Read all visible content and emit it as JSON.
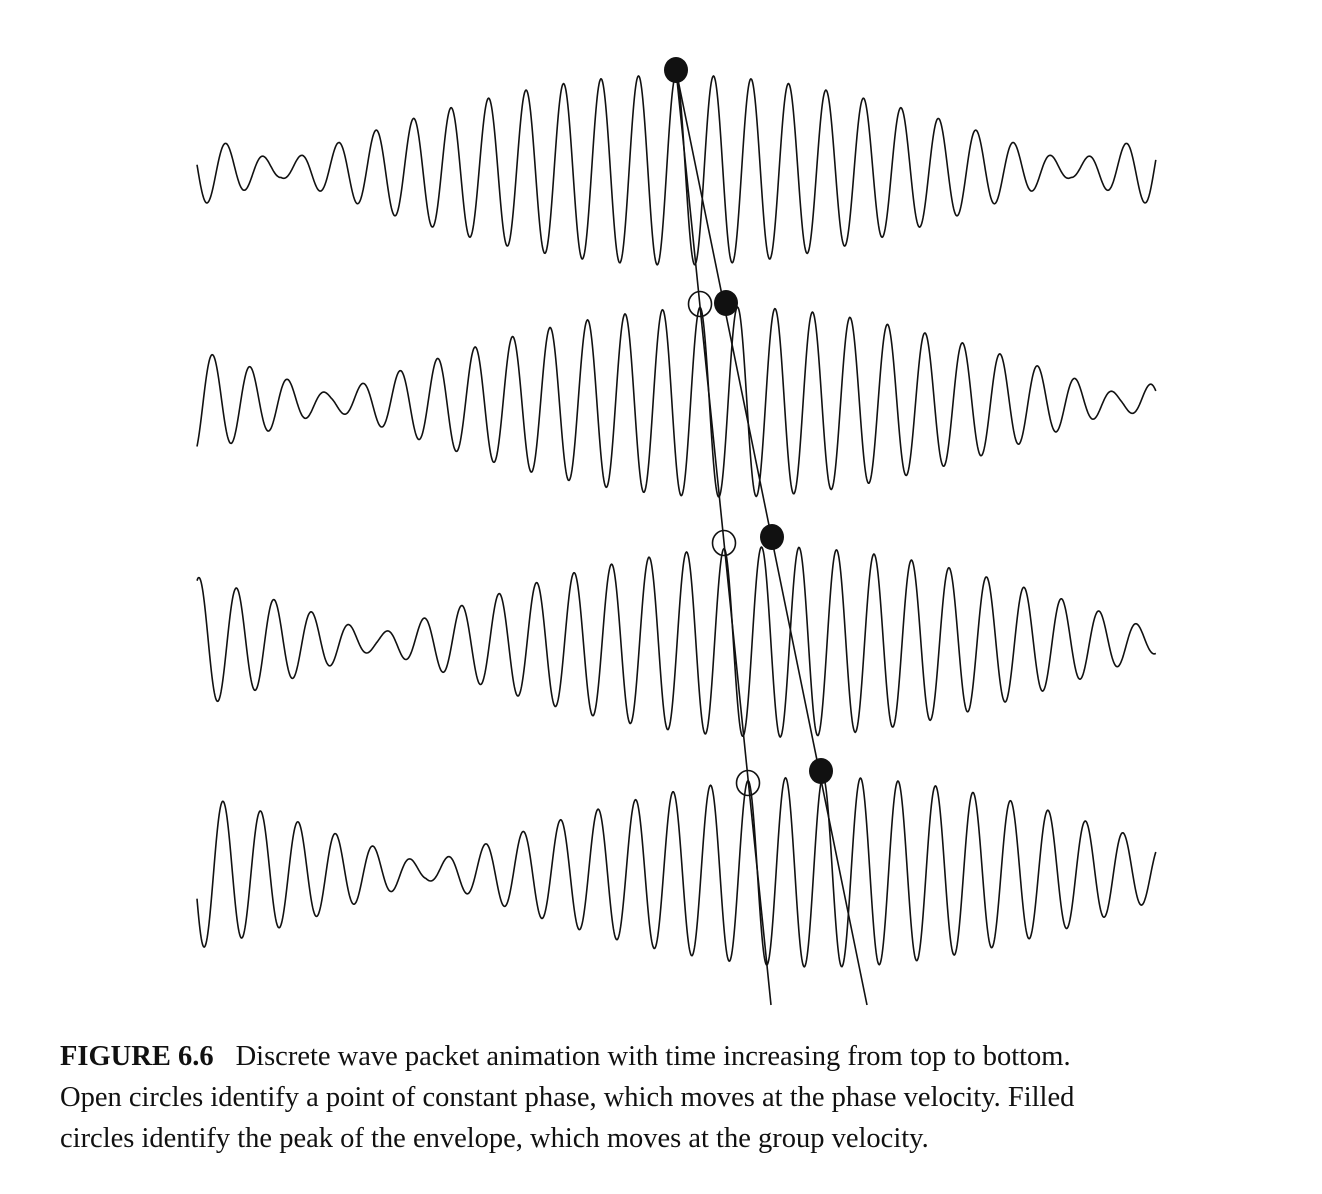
{
  "figure": {
    "label": "FIGURE 6.6",
    "caption_line1": "Discrete wave packet animation with time increasing from top to bottom.",
    "caption_line2": "Open circles identify a point of constant phase, which moves at the phase velocity. Filled",
    "caption_line3": "circles identify the peak of the envelope, which moves at the group velocity.",
    "num_frames": 4,
    "ink_color": "#111111"
  }
}
